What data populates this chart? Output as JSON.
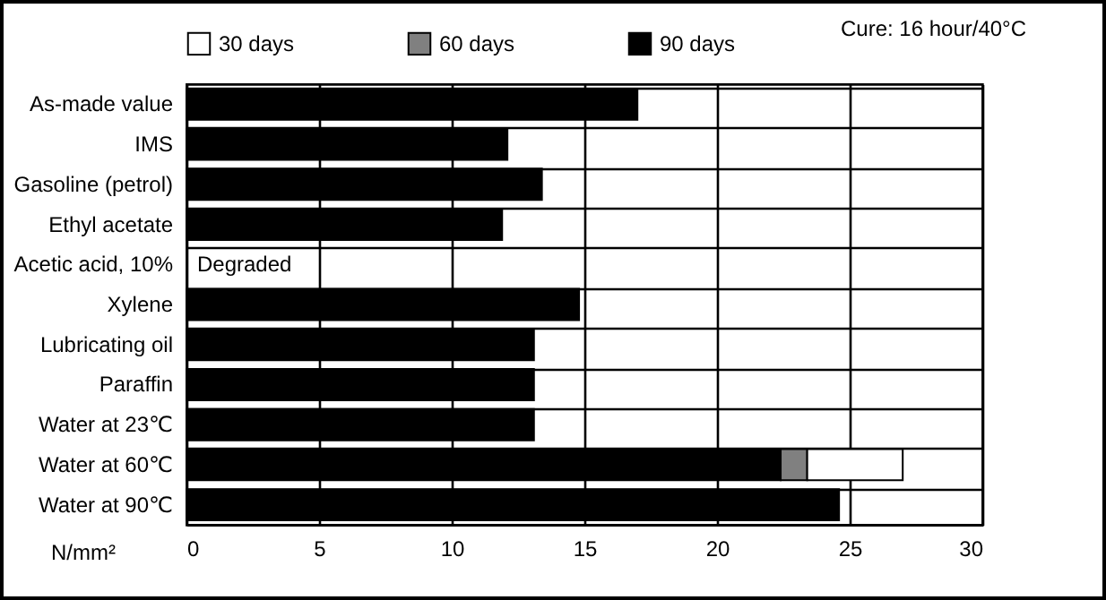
{
  "chart_data": {
    "type": "bar",
    "orientation": "horizontal",
    "stacked": true,
    "xlabel": "N/mm²",
    "categories": [
      "As-made value",
      "IMS",
      "Gasoline (petrol)",
      "Ethyl acetate",
      "Acetic acid, 10%",
      "Xylene",
      "Lubricating oil",
      "Paraffin",
      "Water at 23℃",
      "Water at 60℃",
      "Water at 90℃"
    ],
    "series": [
      {
        "name": "90 days",
        "color": "#000000",
        "values": [
          17.0,
          12.1,
          13.4,
          11.9,
          null,
          14.8,
          13.1,
          13.1,
          13.1,
          22.4,
          24.6
        ]
      },
      {
        "name": "60 days",
        "color": "#808080",
        "values": [
          null,
          null,
          null,
          null,
          null,
          null,
          null,
          null,
          null,
          1.0,
          null
        ]
      },
      {
        "name": "30 days",
        "color": "#ffffff",
        "values": [
          null,
          null,
          null,
          null,
          null,
          null,
          null,
          null,
          null,
          3.6,
          null
        ]
      }
    ],
    "xlim": [
      0,
      30
    ],
    "xticks": [
      0,
      5,
      10,
      15,
      20,
      25,
      30
    ],
    "grid": true,
    "legend": "top",
    "annotations": [
      "Cure: 16 hour/40°C",
      {
        "text": "Degraded",
        "x": 0,
        "y": "Acetic acid, 10%"
      }
    ]
  }
}
